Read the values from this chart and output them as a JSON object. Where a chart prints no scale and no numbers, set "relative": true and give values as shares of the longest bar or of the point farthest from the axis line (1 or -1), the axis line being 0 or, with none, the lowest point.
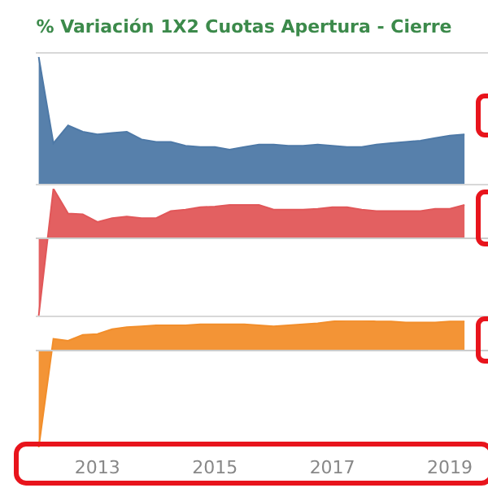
{
  "chart_data": [
    {
      "type": "area",
      "title": "% Variación 1X2 Cuotas Apertura - Cierre",
      "relative": true,
      "color": "#4e79a7",
      "tick_labels": false,
      "xlim": [
        2011.95,
        2019.65
      ],
      "xticks": [
        2013,
        2015,
        2017,
        2019
      ],
      "x": [
        2012,
        2012.25,
        2012.5,
        2012.75,
        2013,
        2013.25,
        2013.5,
        2013.75,
        2014,
        2014.25,
        2014.5,
        2014.75,
        2015,
        2015.25,
        2015.5,
        2015.75,
        2016,
        2016.25,
        2016.5,
        2016.75,
        2017,
        2017.25,
        2017.5,
        2017.75,
        2018,
        2018.25,
        2018.5,
        2018.75,
        2019,
        2019.25
      ],
      "values": [
        1,
        0.32,
        0.46,
        0.41,
        0.39,
        0.4,
        0.41,
        0.35,
        0.33,
        0.33,
        0.3,
        0.29,
        0.29,
        0.27,
        0.29,
        0.31,
        0.31,
        0.3,
        0.3,
        0.31,
        0.3,
        0.29,
        0.29,
        0.31,
        0.32,
        0.33,
        0.34,
        0.36,
        0.38,
        0.39
      ]
    },
    {
      "type": "area",
      "relative": true,
      "color": "#e15759",
      "tick_labels": false,
      "xlim": [
        2011.95,
        2019.65
      ],
      "xticks": [
        2013,
        2015,
        2017,
        2019
      ],
      "x": [
        2012,
        2012.25,
        2012.5,
        2012.75,
        2013,
        2013.25,
        2013.5,
        2013.75,
        2014,
        2014.25,
        2014.5,
        2014.75,
        2015,
        2015.25,
        2015.5,
        2015.75,
        2016,
        2016.25,
        2016.5,
        2016.75,
        2017,
        2017.25,
        2017.5,
        2017.75,
        2018,
        2018.25,
        2018.5,
        2018.75,
        2019,
        2019.25
      ],
      "values": [
        -1,
        0.64,
        0.32,
        0.31,
        0.21,
        0.26,
        0.28,
        0.26,
        0.26,
        0.35,
        0.37,
        0.4,
        0.41,
        0.43,
        0.43,
        0.43,
        0.37,
        0.37,
        0.37,
        0.38,
        0.4,
        0.4,
        0.37,
        0.35,
        0.35,
        0.35,
        0.35,
        0.38,
        0.38,
        0.43
      ]
    },
    {
      "type": "area",
      "relative": true,
      "color": "#f28e2b",
      "tick_labels": "x",
      "xlim": [
        2011.95,
        2019.65
      ],
      "xticks": [
        2013,
        2015,
        2017,
        2019
      ],
      "x": [
        2012,
        2012.25,
        2012.5,
        2012.75,
        2013,
        2013.25,
        2013.5,
        2013.75,
        2014,
        2014.25,
        2014.5,
        2014.75,
        2015,
        2015.25,
        2015.5,
        2015.75,
        2016,
        2016.25,
        2016.5,
        2016.75,
        2017,
        2017.25,
        2017.5,
        2017.75,
        2018,
        2018.25,
        2018.5,
        2018.75,
        2019,
        2019.25
      ],
      "values": [
        -1,
        0.12,
        0.1,
        0.16,
        0.17,
        0.22,
        0.24,
        0.25,
        0.26,
        0.26,
        0.26,
        0.27,
        0.27,
        0.27,
        0.27,
        0.26,
        0.25,
        0.26,
        0.27,
        0.28,
        0.3,
        0.31,
        0.31,
        0.3,
        0.3,
        0.29,
        0.29,
        0.29,
        0.3,
        0.3
      ]
    }
  ]
}
